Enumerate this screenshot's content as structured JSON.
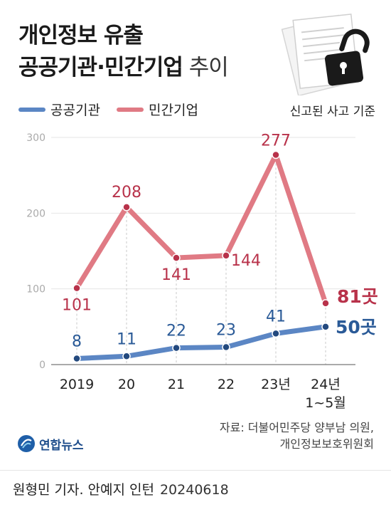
{
  "header": {
    "title_line1": "개인정보 유출",
    "title_line2_bold": "공공기관·민간기업",
    "title_line2_thin": " 추이",
    "illustration": "document-and-unlocked-padlock-icon"
  },
  "basis_note": "신고된 사고 기준",
  "colors": {
    "public": "#5b86c4",
    "public_dot": "#23497e",
    "public_label": "#2a5a97",
    "private": "#e07a84",
    "private_dot": "#b8324a",
    "private_label": "#b8324a"
  },
  "chart_data": {
    "type": "line",
    "categories": [
      "2019",
      "20",
      "21",
      "22",
      "23년",
      "24년\n1~5월"
    ],
    "ylim": [
      0,
      300
    ],
    "yticks": [
      0,
      100,
      200,
      300
    ],
    "series": [
      {
        "name": "공공기관",
        "values": [
          8,
          11,
          22,
          23,
          41,
          50
        ],
        "labels": [
          "8",
          "11",
          "22",
          "23",
          "41",
          "50곳"
        ]
      },
      {
        "name": "민간기업",
        "values": [
          101,
          208,
          141,
          144,
          277,
          81
        ],
        "labels": [
          "101",
          "208",
          "141",
          "144",
          "277",
          "81곳"
        ]
      }
    ]
  },
  "source": {
    "line1": "자료: 더불어민주당 양부남 의원,",
    "line2": "개인정보보호위원회"
  },
  "logo": {
    "text": "연합뉴스",
    "icon": "yonhap-globe-logo"
  },
  "footer": {
    "credit": "원형민 기자. 안예지 인턴",
    "date": "20240618"
  }
}
